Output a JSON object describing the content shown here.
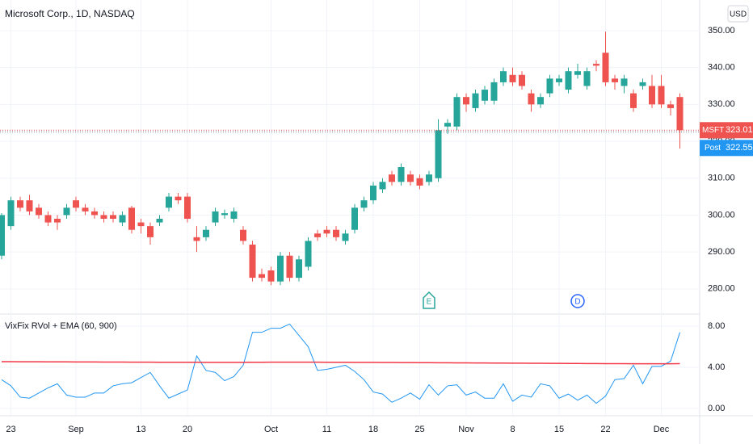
{
  "chart_data": [
    {
      "type": "candlestick",
      "title": "Microsoft Corp., 1D, NASDAQ",
      "currency": "USD",
      "categories": [
        null,
        "23",
        null,
        null,
        null,
        null,
        null,
        null,
        "Sep",
        null,
        null,
        null,
        null,
        null,
        null,
        "13",
        null,
        null,
        null,
        null,
        "20",
        null,
        null,
        null,
        null,
        null,
        null,
        null,
        null,
        "Oct",
        null,
        null,
        null,
        null,
        null,
        "11",
        null,
        null,
        null,
        null,
        "18",
        null,
        null,
        null,
        null,
        "25",
        null,
        null,
        null,
        null,
        "Nov",
        null,
        null,
        null,
        null,
        "8",
        null,
        null,
        null,
        null,
        "15",
        null,
        null,
        null,
        null,
        "22",
        null,
        null,
        null,
        null,
        null,
        "Dec",
        null,
        null
      ],
      "open": [
        289,
        297,
        304,
        304,
        302,
        300,
        299,
        300,
        304,
        302,
        301,
        300,
        300,
        298,
        302,
        298,
        297,
        298,
        302,
        305,
        305,
        294,
        294,
        298,
        300,
        299,
        296,
        292,
        284,
        285,
        282,
        289,
        283,
        286,
        295,
        296,
        296,
        293,
        296,
        302,
        304,
        307,
        311,
        309,
        311,
        310,
        309,
        310,
        324,
        324,
        332,
        329,
        331,
        331,
        336,
        338,
        338,
        333,
        330,
        333,
        336,
        334,
        338,
        335,
        341,
        344,
        337,
        335,
        333,
        335,
        335,
        335,
        330,
        332
      ],
      "high": [
        300.5,
        305,
        305,
        305.5,
        303,
        301,
        300,
        303,
        305,
        303,
        302,
        301,
        301,
        301,
        302.5,
        299,
        298,
        300,
        306,
        306,
        306,
        297,
        297,
        302,
        301.5,
        302,
        297,
        293,
        285.5,
        286,
        290,
        290,
        289,
        294,
        296,
        297,
        297,
        296,
        303,
        305,
        309,
        310,
        312,
        314,
        312,
        311,
        312,
        326,
        326,
        333,
        333,
        334,
        335,
        337,
        340,
        340,
        339,
        334,
        333,
        338,
        338,
        340,
        341,
        340,
        342,
        349.7,
        338,
        338,
        334,
        337,
        338,
        338,
        331,
        333
      ],
      "low": [
        288,
        296,
        301,
        300,
        299,
        297,
        296,
        299,
        301,
        300,
        299,
        298,
        298,
        297,
        295,
        295,
        292,
        297,
        301,
        303,
        298,
        290,
        293,
        297,
        299,
        298,
        292,
        282,
        282,
        281,
        281,
        282,
        282,
        285,
        293,
        294,
        293,
        292,
        295,
        301,
        303,
        306,
        308,
        308,
        308,
        307,
        308,
        309,
        322,
        323,
        328,
        328,
        330,
        330,
        335,
        335,
        334,
        328,
        329,
        332,
        335,
        333,
        337,
        334,
        339,
        335,
        334,
        333,
        328,
        334,
        329,
        329,
        327,
        318
      ],
      "close": [
        300,
        304,
        302,
        301,
        300,
        298,
        298,
        302,
        302,
        301,
        300,
        299,
        299,
        300,
        296,
        297,
        294,
        299,
        305,
        304,
        299,
        293,
        296,
        301,
        300.5,
        301,
        293,
        283,
        283,
        282,
        289,
        283,
        288,
        293,
        294,
        295,
        294,
        295,
        302,
        304,
        308,
        309,
        309,
        313,
        309,
        308,
        311,
        323,
        325,
        332,
        330,
        333,
        334,
        336,
        339,
        336,
        335,
        330,
        332,
        337,
        337,
        339,
        339,
        339,
        340.5,
        336,
        336,
        337,
        329,
        336,
        330,
        330,
        329,
        323.01
      ],
      "up_color": "#26a69a",
      "down_color": "#ef5350",
      "ylim": [
        273.4,
        358.3
      ],
      "yticks": [
        {
          "value": 280,
          "label": "280.00"
        },
        {
          "value": 290,
          "label": "290.00"
        },
        {
          "value": 300,
          "label": "300.00"
        },
        {
          "value": 310,
          "label": "310.00"
        },
        {
          "value": 320,
          "label": "320.00"
        },
        {
          "value": 330,
          "label": "330.00"
        },
        {
          "value": 340,
          "label": "340.00"
        },
        {
          "value": 350,
          "label": "350.00"
        }
      ],
      "grid": true,
      "last_price": {
        "name": "MSFT",
        "value": 323.01,
        "color": "#ef5350"
      },
      "post_price": {
        "name": "Post",
        "value": 322.55,
        "color": "#2196f3"
      },
      "events": [
        {
          "label": "E",
          "at": 46,
          "color": "#26a69a"
        },
        {
          "label": "D",
          "at": 62,
          "color": "#2962ff"
        }
      ]
    },
    {
      "type": "line",
      "title": "VixFix RVol + EMA (60, 900)",
      "series": [
        {
          "color": "#2196f3",
          "values": [
            2.8,
            2.2,
            1.1,
            1.0,
            1.5,
            2.0,
            2.4,
            1.3,
            1.1,
            1.1,
            1.5,
            1.5,
            2.2,
            2.4,
            2.5,
            3.0,
            3.5,
            2.2,
            1.0,
            1.4,
            1.8,
            5.1,
            3.7,
            3.5,
            2.7,
            3.1,
            4.2,
            7.4,
            7.4,
            7.8,
            7.8,
            8.2,
            7.1,
            6.0,
            3.7,
            3.8,
            4.0,
            4.2,
            3.6,
            2.8,
            1.6,
            1.4,
            0.6,
            1.0,
            1.5,
            0.9,
            2.3,
            1.3,
            2.2,
            2.3,
            1.3,
            1.6,
            1.0,
            1.0,
            2.4,
            0.7,
            1.3,
            1.1,
            2.4,
            2.2,
            1.0,
            1.4,
            0.8,
            1.3,
            0.5,
            1.2,
            2.8,
            2.9,
            4.2,
            2.4,
            4.1,
            4.1,
            4.6,
            7.4
          ]
        },
        {
          "color": "#f23645",
          "values": [
            4.55,
            4.55,
            4.54,
            4.54,
            4.54,
            4.53,
            4.53,
            4.53,
            4.52,
            4.52,
            4.52,
            4.51,
            4.51,
            4.51,
            4.5,
            4.5,
            4.5,
            4.49,
            4.49,
            4.49,
            4.49,
            4.49,
            4.48,
            4.48,
            4.48,
            4.48,
            4.48,
            4.49,
            4.49,
            4.5,
            4.5,
            4.5,
            4.5,
            4.5,
            4.5,
            4.49,
            4.49,
            4.49,
            4.48,
            4.48,
            4.48,
            4.47,
            4.47,
            4.46,
            4.46,
            4.45,
            4.45,
            4.44,
            4.44,
            4.43,
            4.43,
            4.42,
            4.42,
            4.41,
            4.41,
            4.4,
            4.4,
            4.39,
            4.39,
            4.38,
            4.38,
            4.37,
            4.37,
            4.36,
            4.36,
            4.35,
            4.35,
            4.35,
            4.34,
            4.34,
            4.34,
            4.34,
            4.34,
            4.35
          ]
        }
      ],
      "ylim": [
        -0.63,
        9.1
      ],
      "yticks": [
        {
          "value": 0,
          "label": "0.00"
        },
        {
          "value": 4,
          "label": "4.00"
        },
        {
          "value": 8,
          "label": "8.00"
        }
      ],
      "grid": true
    }
  ]
}
